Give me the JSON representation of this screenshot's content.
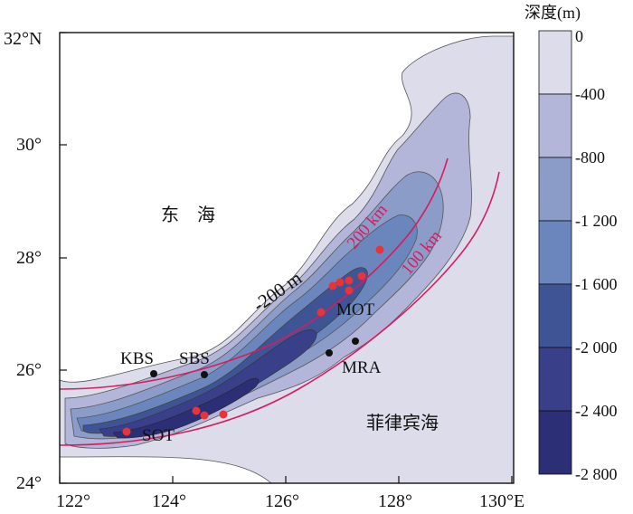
{
  "map": {
    "x_ticks": [
      "122°",
      "124°",
      "126°",
      "128°",
      "130°E"
    ],
    "y_ticks": [
      "32°N",
      "30°",
      "28°",
      "26°",
      "24°"
    ],
    "labels": {
      "east_sea": "东　海",
      "philippine_sea": "菲律宾海",
      "contour_200m": "-200 m",
      "ring_200km": "200 km",
      "ring_100km": "100 km"
    },
    "sites": [
      {
        "name": "KBS"
      },
      {
        "name": "SBS"
      },
      {
        "name": "MOT"
      },
      {
        "name": "MRA"
      },
      {
        "name": "SOT"
      }
    ]
  },
  "legend": {
    "title": "深度(m)",
    "levels": [
      "0",
      "-400",
      "-800",
      "-1 200",
      "-1 600",
      "-2 000",
      "-2 400",
      "-2 800"
    ],
    "colors": [
      "#ffffff",
      "#dcdcea",
      "#b3b6d8",
      "#8c9cc8",
      "#6a86bc",
      "#3e5494",
      "#3a3f8a",
      "#2c2f76"
    ]
  },
  "colors": {
    "ring": "#d81b60",
    "sample_point": "#e8333b",
    "site_point": "#111111"
  }
}
